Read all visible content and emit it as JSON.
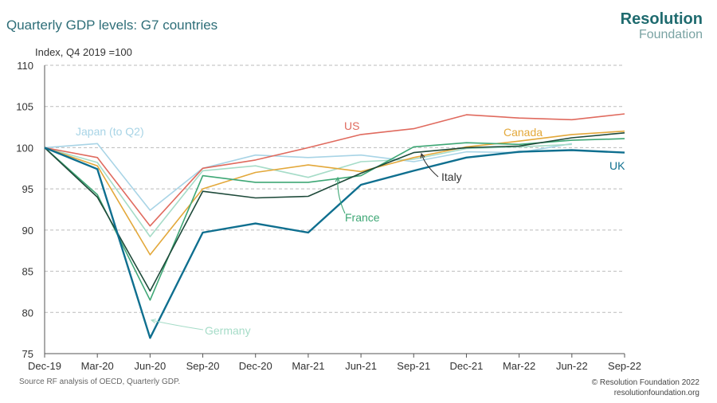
{
  "header": {
    "title": "Quarterly GDP levels: G7 countries",
    "logo_line1": "Resolution",
    "logo_line2": "Foundation"
  },
  "footer": {
    "source": "Source RF analysis of OECD, Quarterly GDP.",
    "credit_line1": "© Resolution Foundation 2022",
    "credit_line2": "resolutionfoundation.org"
  },
  "chart_data": {
    "type": "line",
    "ylabel": "Index, Q4 2019 =100",
    "ylim": [
      75,
      110
    ],
    "yticks": [
      75,
      80,
      85,
      90,
      95,
      100,
      105,
      110
    ],
    "categories": [
      "Dec-19",
      "Mar-20",
      "Jun-20",
      "Sep-20",
      "Dec-20",
      "Mar-21",
      "Jun-21",
      "Sep-21",
      "Dec-21",
      "Mar-22",
      "Jun-22",
      "Sep-22"
    ],
    "grid": "horizontal-dashed",
    "series": [
      {
        "name": "Japan (to Q2)",
        "color": "#a8d4e6",
        "values": [
          100,
          100.5,
          92.4,
          97.5,
          99.1,
          98.8,
          99.1,
          98.3,
          99.5,
          99.4,
          100.5,
          null
        ]
      },
      {
        "name": "Germany",
        "color": "#a6dcc8",
        "values": [
          100,
          98.2,
          89.2,
          97.2,
          97.8,
          96.4,
          98.3,
          98.6,
          99.9,
          100.1,
          100.4,
          null
        ]
      },
      {
        "name": "US",
        "color": "#e06a5e",
        "values": [
          100,
          98.8,
          90.5,
          97.5,
          98.5,
          100,
          101.6,
          102.3,
          104.0,
          103.6,
          103.4,
          104.1
        ]
      },
      {
        "name": "Canada",
        "color": "#e3a83a",
        "values": [
          100,
          97.8,
          87.0,
          95.0,
          97.0,
          97.9,
          97.1,
          98.8,
          100.1,
          100.8,
          101.6,
          102.0
        ]
      },
      {
        "name": "France",
        "color": "#3ea775",
        "values": [
          100,
          94.3,
          81.5,
          96.6,
          95.8,
          95.8,
          96.6,
          100.1,
          100.6,
          100.4,
          100.9,
          101.1
        ]
      },
      {
        "name": "Italy",
        "color": "#1e4a3a",
        "values": [
          100,
          94.0,
          82.6,
          94.7,
          93.9,
          94.1,
          96.9,
          99.4,
          100.0,
          100.2,
          101.2,
          101.8
        ]
      },
      {
        "name": "UK",
        "color": "#0f6f8f",
        "values": [
          100,
          97.4,
          76.9,
          89.7,
          90.8,
          89.7,
          95.5,
          97.2,
          98.8,
          99.5,
          99.7,
          99.4
        ]
      }
    ],
    "annotations": [
      {
        "text": "Japan (to Q2)",
        "series": "Japan (to Q2)",
        "color": "#a8d4e6"
      },
      {
        "text": "US",
        "series": "US",
        "color": "#e06a5e"
      },
      {
        "text": "Canada",
        "series": "Canada",
        "color": "#e3a83a"
      },
      {
        "text": "UK",
        "series": "UK",
        "color": "#0f6f8f"
      },
      {
        "text": "Italy",
        "series": "Italy",
        "color": "#1e4a3a",
        "arrow": true
      },
      {
        "text": "France",
        "series": "France",
        "color": "#3ea775",
        "arrow": true
      },
      {
        "text": "Germany",
        "series": "Germany",
        "color": "#a6dcc8",
        "arrow": true
      }
    ]
  }
}
